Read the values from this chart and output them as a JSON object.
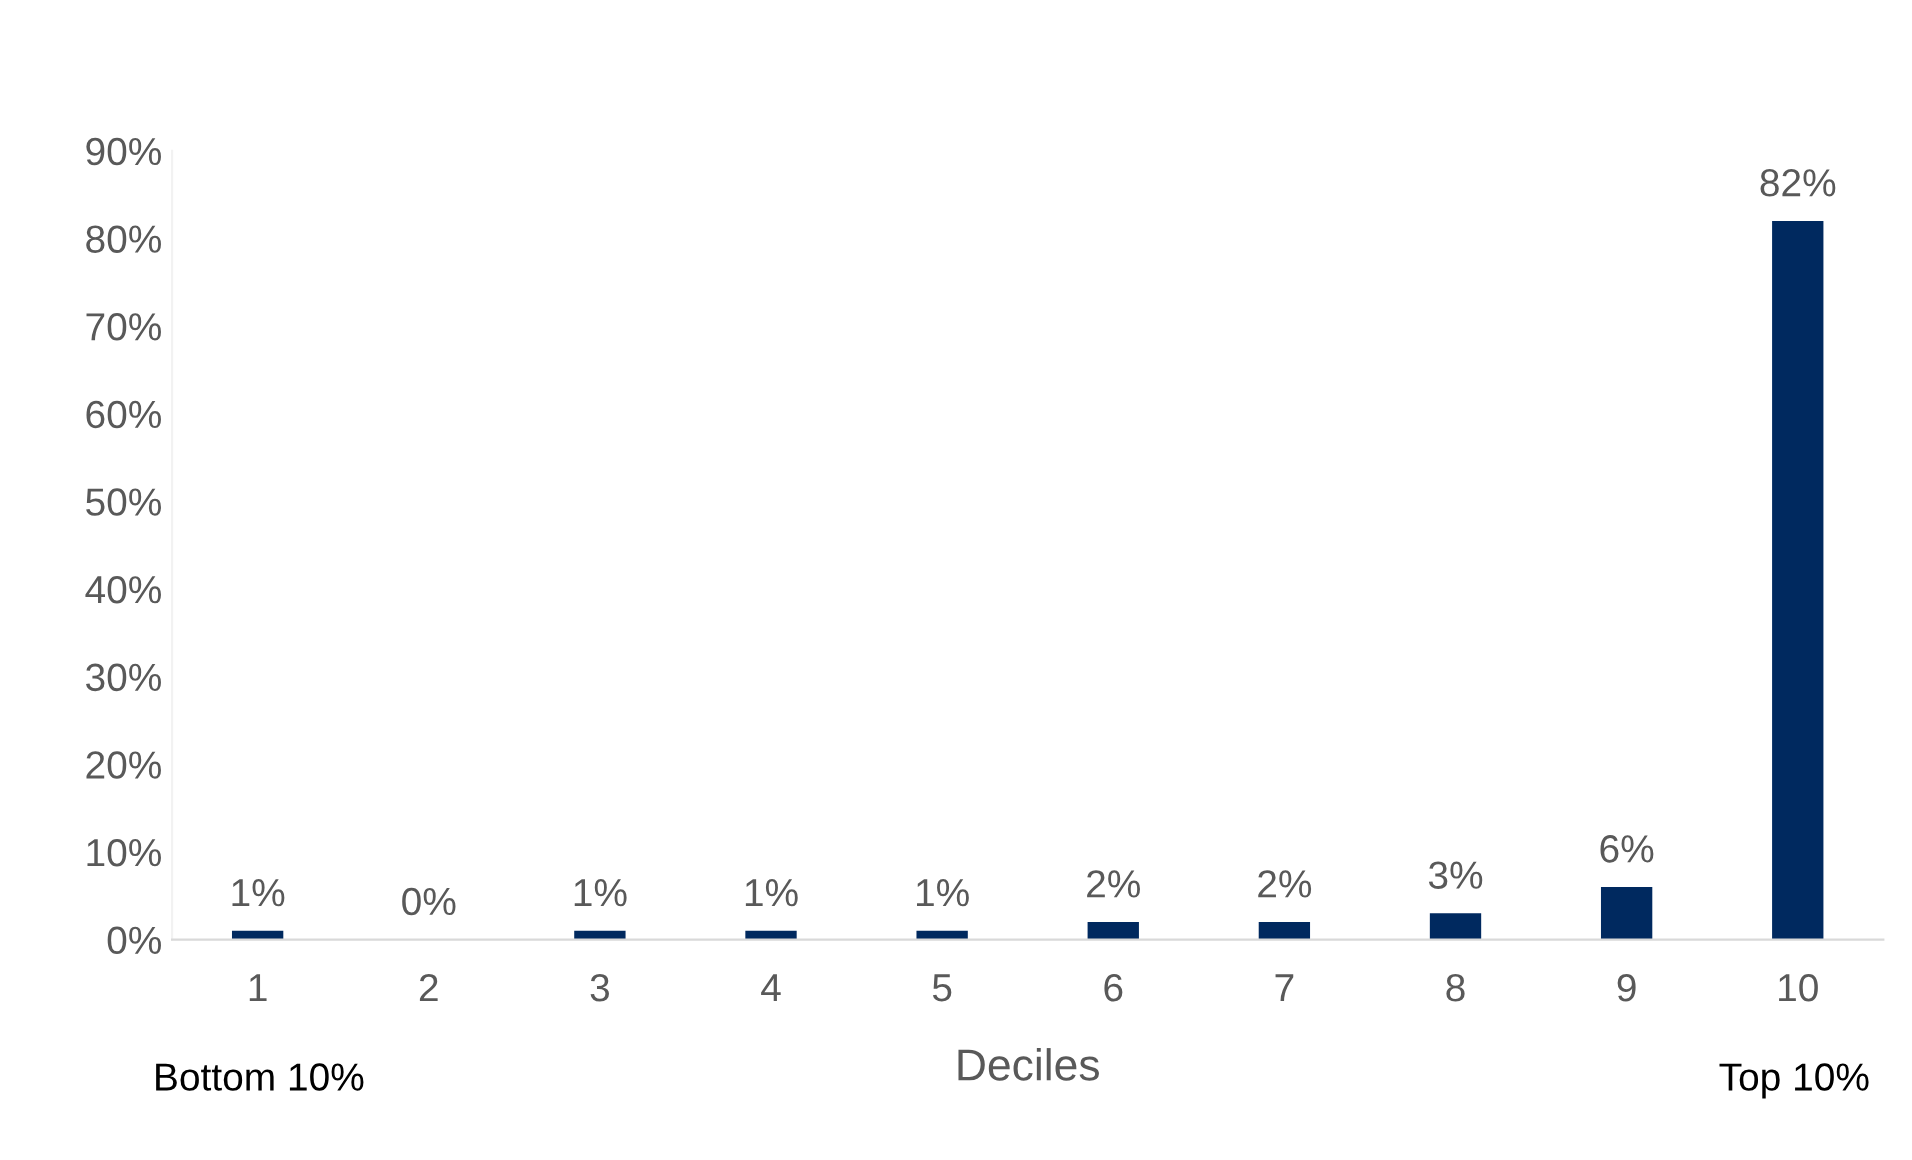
{
  "chart_data": {
    "type": "bar",
    "xlabel": "Deciles",
    "categories": [
      "1",
      "2",
      "3",
      "4",
      "5",
      "6",
      "7",
      "8",
      "9",
      "10"
    ],
    "values": [
      1,
      0,
      1,
      1,
      1,
      2,
      2,
      3,
      6,
      82
    ],
    "value_labels": [
      "1%",
      "0%",
      "1%",
      "1%",
      "1%",
      "2%",
      "2%",
      "3%",
      "6%",
      "82%"
    ],
    "color": "#00295f",
    "ylim": [
      0,
      90
    ],
    "yticks": [
      {
        "value": 0,
        "label": "0%"
      },
      {
        "value": 10,
        "label": "10%"
      },
      {
        "value": 20,
        "label": "20%"
      },
      {
        "value": 30,
        "label": "30%"
      },
      {
        "value": 40,
        "label": "40%"
      },
      {
        "value": 50,
        "label": "50%"
      },
      {
        "value": 60,
        "label": "60%"
      },
      {
        "value": 70,
        "label": "70%"
      },
      {
        "value": 80,
        "label": "80%"
      },
      {
        "value": 90,
        "label": "90%"
      }
    ],
    "grid": false,
    "annotations": [
      "Bottom 10%",
      "Top 10%"
    ]
  }
}
